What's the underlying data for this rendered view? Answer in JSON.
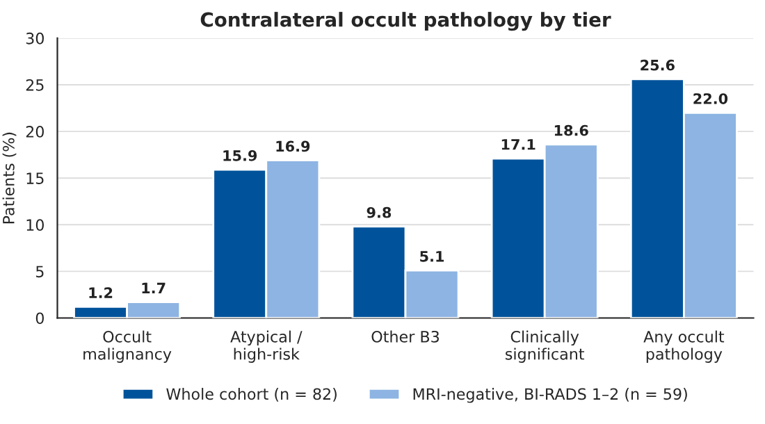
{
  "chart_data": {
    "type": "bar",
    "title": "Contralateral occult pathology by tier",
    "ylabel": "Patients (%)",
    "categories": [
      "Occult\nmalignancy",
      "Atypical /\nhigh-risk",
      "Other B3",
      "Clinically\nsignificant",
      "Any occult\npathology"
    ],
    "series": [
      {
        "name": "Whole cohort (n = 82)",
        "color": "#00539b",
        "values": [
          1.2,
          15.9,
          9.8,
          17.1,
          25.6
        ],
        "value_labels": [
          "1.2",
          "15.9",
          "9.8",
          "17.1",
          "25.6"
        ]
      },
      {
        "name": "MRI-negative, BI-RADS 1–2 (n = 59)",
        "color": "#8db4e2",
        "values": [
          1.7,
          16.9,
          5.1,
          18.6,
          22.0
        ],
        "value_labels": [
          "1.7",
          "16.9",
          "5.1",
          "18.6",
          "22.0"
        ]
      }
    ],
    "ylim": [
      0,
      30
    ],
    "yticks": [
      0,
      5,
      10,
      15,
      20,
      25,
      30
    ],
    "grid": "y",
    "legend": "bottom"
  }
}
